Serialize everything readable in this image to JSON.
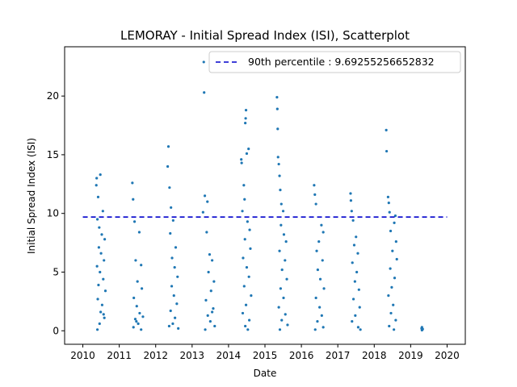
{
  "chart_data": {
    "type": "scatter",
    "title": "LEMORAY - Initial Spread Index (ISI), Scatterplot",
    "xlabel": "Date",
    "ylabel": "Initial Spread Index (ISI)",
    "xlim": [
      2009.5,
      2020.5
    ],
    "ylim": [
      -1.15,
      24.2
    ],
    "x_ticks": [
      "2010",
      "2011",
      "2012",
      "2013",
      "2014",
      "2015",
      "2016",
      "2017",
      "2018",
      "2019",
      "2020"
    ],
    "y_ticks": [
      "0",
      "5",
      "10",
      "15",
      "20"
    ],
    "grid": false,
    "legend_position": "top-right",
    "point_color": "#1f77b4",
    "reference_line": {
      "label": "90th percentile : 9.69255256652832",
      "value": 9.69255256652832,
      "x_range": [
        2010.0,
        2020.0
      ],
      "color": "#0000cc",
      "style": "dashed"
    },
    "series": [
      {
        "values": [
          [
            2010.38,
            13.0
          ],
          [
            2010.37,
            12.4
          ],
          [
            2010.48,
            13.3
          ],
          [
            2010.42,
            11.4
          ],
          [
            2010.55,
            10.2
          ],
          [
            2010.4,
            9.5
          ],
          [
            2010.45,
            8.8
          ],
          [
            2010.52,
            8.2
          ],
          [
            2010.6,
            7.8
          ],
          [
            2010.44,
            7.1
          ],
          [
            2010.5,
            6.6
          ],
          [
            2010.58,
            6.0
          ],
          [
            2010.39,
            5.5
          ],
          [
            2010.47,
            5.0
          ],
          [
            2010.56,
            4.4
          ],
          [
            2010.43,
            3.9
          ],
          [
            2010.62,
            3.4
          ],
          [
            2010.41,
            2.7
          ],
          [
            2010.53,
            2.2
          ],
          [
            2010.49,
            1.6
          ],
          [
            2010.59,
            1.1
          ],
          [
            2010.46,
            0.6
          ],
          [
            2010.4,
            0.1
          ],
          [
            2010.57,
            1.4
          ],
          [
            2011.36,
            12.6
          ],
          [
            2011.38,
            11.2
          ],
          [
            2011.42,
            9.3
          ],
          [
            2011.55,
            8.4
          ],
          [
            2011.45,
            6.0
          ],
          [
            2011.6,
            5.6
          ],
          [
            2011.5,
            4.2
          ],
          [
            2011.62,
            3.6
          ],
          [
            2011.4,
            2.8
          ],
          [
            2011.48,
            2.1
          ],
          [
            2011.56,
            1.5
          ],
          [
            2011.44,
            1.0
          ],
          [
            2011.52,
            0.6
          ],
          [
            2011.39,
            0.3
          ],
          [
            2011.6,
            0.1
          ],
          [
            2011.65,
            1.2
          ],
          [
            2011.47,
            0.8
          ],
          [
            2012.35,
            15.7
          ],
          [
            2012.33,
            14.0
          ],
          [
            2012.38,
            12.2
          ],
          [
            2012.42,
            10.5
          ],
          [
            2012.48,
            9.4
          ],
          [
            2012.4,
            8.3
          ],
          [
            2012.55,
            7.1
          ],
          [
            2012.45,
            6.2
          ],
          [
            2012.52,
            5.4
          ],
          [
            2012.6,
            4.6
          ],
          [
            2012.44,
            3.8
          ],
          [
            2012.5,
            3.0
          ],
          [
            2012.58,
            2.3
          ],
          [
            2012.41,
            1.7
          ],
          [
            2012.53,
            1.1
          ],
          [
            2012.47,
            0.6
          ],
          [
            2012.62,
            0.2
          ],
          [
            2012.37,
            0.4
          ],
          [
            2013.32,
            22.9
          ],
          [
            2013.33,
            20.3
          ],
          [
            2013.35,
            11.5
          ],
          [
            2013.42,
            11.0
          ],
          [
            2013.3,
            10.1
          ],
          [
            2013.4,
            8.4
          ],
          [
            2013.48,
            6.5
          ],
          [
            2013.55,
            6.0
          ],
          [
            2013.45,
            5.0
          ],
          [
            2013.6,
            4.2
          ],
          [
            2013.52,
            3.4
          ],
          [
            2013.38,
            2.6
          ],
          [
            2013.58,
            1.9
          ],
          [
            2013.43,
            1.3
          ],
          [
            2013.5,
            0.8
          ],
          [
            2013.62,
            0.4
          ],
          [
            2013.36,
            0.1
          ],
          [
            2013.55,
            1.6
          ],
          [
            2014.35,
            14.6
          ],
          [
            2014.36,
            14.3
          ],
          [
            2014.48,
            18.8
          ],
          [
            2014.47,
            18.1
          ],
          [
            2014.46,
            17.7
          ],
          [
            2014.55,
            15.5
          ],
          [
            2014.5,
            15.1
          ],
          [
            2014.42,
            12.4
          ],
          [
            2014.44,
            11.2
          ],
          [
            2014.38,
            10.2
          ],
          [
            2014.52,
            9.3
          ],
          [
            2014.58,
            8.6
          ],
          [
            2014.45,
            7.8
          ],
          [
            2014.6,
            7.0
          ],
          [
            2014.4,
            6.2
          ],
          [
            2014.5,
            5.4
          ],
          [
            2014.56,
            4.6
          ],
          [
            2014.43,
            3.8
          ],
          [
            2014.62,
            3.0
          ],
          [
            2014.48,
            2.2
          ],
          [
            2014.39,
            1.5
          ],
          [
            2014.57,
            0.9
          ],
          [
            2014.46,
            0.4
          ],
          [
            2014.53,
            0.1
          ],
          [
            2015.33,
            19.9
          ],
          [
            2015.34,
            18.9
          ],
          [
            2015.35,
            17.2
          ],
          [
            2015.36,
            14.8
          ],
          [
            2015.38,
            14.2
          ],
          [
            2015.4,
            13.2
          ],
          [
            2015.42,
            12.0
          ],
          [
            2015.45,
            10.8
          ],
          [
            2015.5,
            10.2
          ],
          [
            2015.44,
            9.0
          ],
          [
            2015.52,
            8.2
          ],
          [
            2015.58,
            7.6
          ],
          [
            2015.4,
            6.8
          ],
          [
            2015.55,
            6.0
          ],
          [
            2015.47,
            5.2
          ],
          [
            2015.6,
            4.4
          ],
          [
            2015.43,
            3.6
          ],
          [
            2015.51,
            2.8
          ],
          [
            2015.38,
            2.0
          ],
          [
            2015.56,
            1.4
          ],
          [
            2015.46,
            0.9
          ],
          [
            2015.62,
            0.5
          ],
          [
            2015.41,
            0.1
          ],
          [
            2016.35,
            12.4
          ],
          [
            2016.37,
            11.6
          ],
          [
            2016.4,
            10.8
          ],
          [
            2016.55,
            9.0
          ],
          [
            2016.6,
            8.4
          ],
          [
            2016.48,
            7.6
          ],
          [
            2016.42,
            6.8
          ],
          [
            2016.58,
            6.0
          ],
          [
            2016.45,
            5.2
          ],
          [
            2016.52,
            4.4
          ],
          [
            2016.62,
            3.6
          ],
          [
            2016.4,
            2.8
          ],
          [
            2016.5,
            2.0
          ],
          [
            2016.56,
            1.3
          ],
          [
            2016.44,
            0.8
          ],
          [
            2016.6,
            0.3
          ],
          [
            2016.38,
            0.1
          ],
          [
            2017.35,
            11.7
          ],
          [
            2017.36,
            11.1
          ],
          [
            2017.38,
            10.2
          ],
          [
            2017.42,
            9.4
          ],
          [
            2017.5,
            8.0
          ],
          [
            2017.45,
            7.3
          ],
          [
            2017.55,
            6.6
          ],
          [
            2017.4,
            5.8
          ],
          [
            2017.52,
            5.0
          ],
          [
            2017.47,
            4.2
          ],
          [
            2017.58,
            3.5
          ],
          [
            2017.43,
            2.7
          ],
          [
            2017.6,
            2.0
          ],
          [
            2017.48,
            1.3
          ],
          [
            2017.39,
            0.8
          ],
          [
            2017.56,
            0.3
          ],
          [
            2017.62,
            0.1
          ],
          [
            2018.33,
            17.1
          ],
          [
            2018.34,
            15.3
          ],
          [
            2018.38,
            11.4
          ],
          [
            2018.4,
            10.9
          ],
          [
            2018.42,
            10.1
          ],
          [
            2018.58,
            9.8
          ],
          [
            2018.55,
            9.2
          ],
          [
            2018.45,
            8.5
          ],
          [
            2018.6,
            7.6
          ],
          [
            2018.5,
            6.8
          ],
          [
            2018.62,
            6.1
          ],
          [
            2018.44,
            5.3
          ],
          [
            2018.56,
            4.5
          ],
          [
            2018.48,
            3.7
          ],
          [
            2018.39,
            3.0
          ],
          [
            2018.52,
            2.2
          ],
          [
            2018.46,
            1.5
          ],
          [
            2018.59,
            0.9
          ],
          [
            2018.41,
            0.4
          ],
          [
            2018.54,
            0.1
          ],
          [
            2019.3,
            0.2
          ],
          [
            2019.31,
            0.05
          ],
          [
            2019.32,
            0.1
          ],
          [
            2019.33,
            0.15
          ],
          [
            2019.31,
            0.3
          ]
        ]
      }
    ]
  }
}
